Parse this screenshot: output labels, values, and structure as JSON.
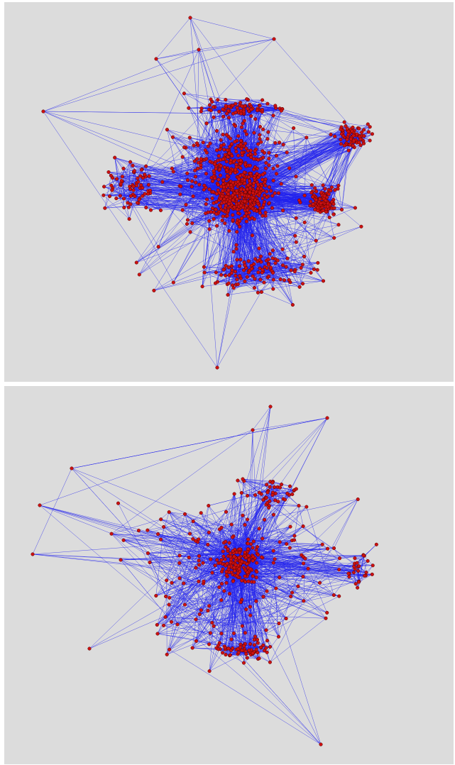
{
  "colors": {
    "background": "#dcdcdc",
    "edge": "#2222ee",
    "node_fill": "#cc1111",
    "node_stroke": "#550000"
  },
  "icons": [
    "network-graph"
  ],
  "panels": [
    {
      "name": "network-graph-top",
      "node_count": 1100,
      "edge_count": 5200
    },
    {
      "name": "network-graph-bottom",
      "node_count": 430,
      "edge_count": 2100
    }
  ]
}
